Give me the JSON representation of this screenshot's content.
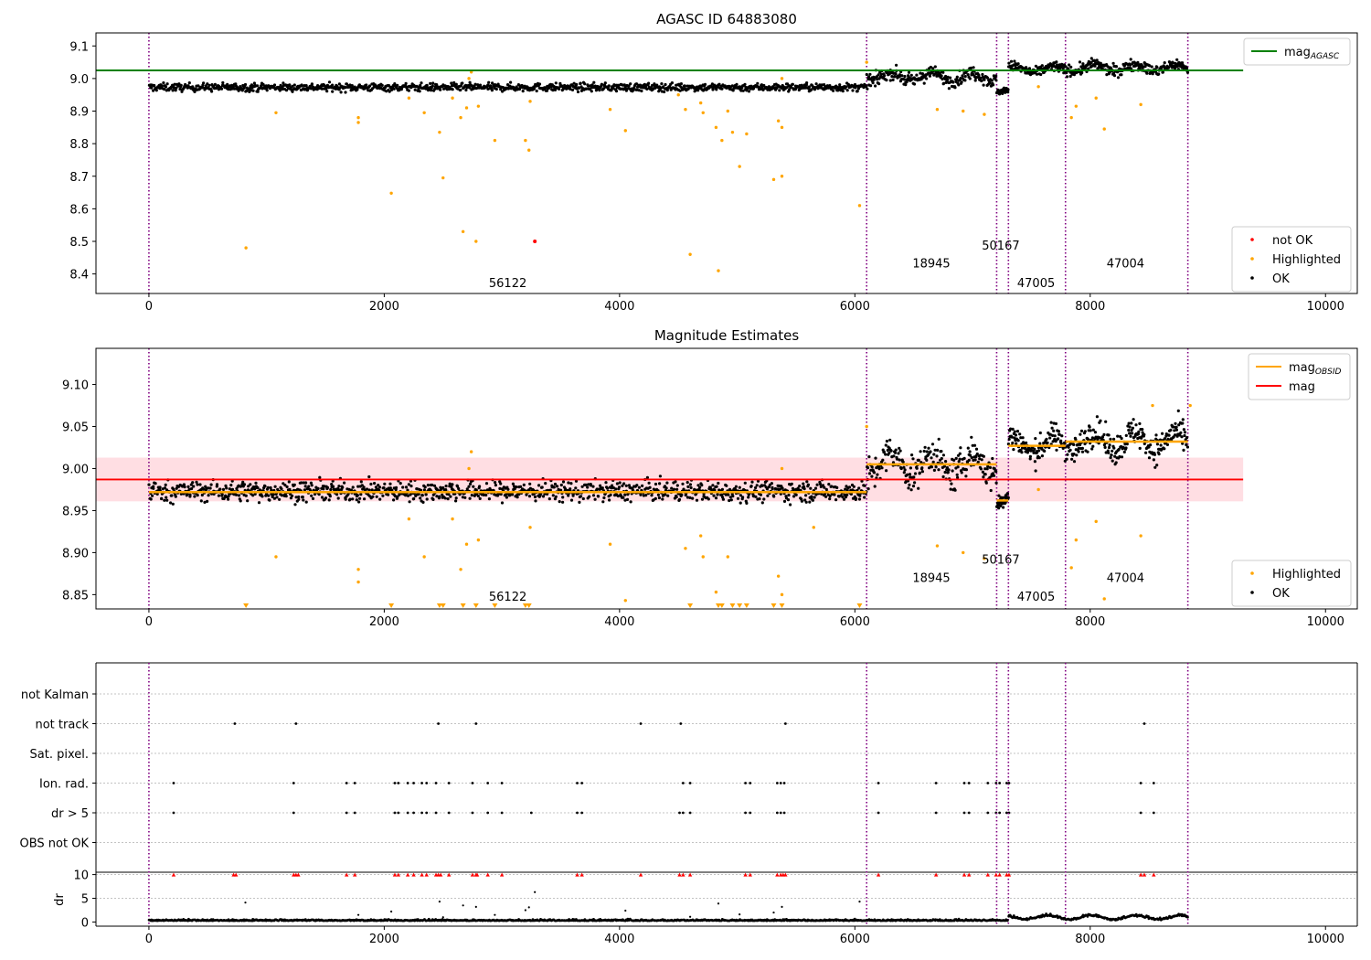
{
  "figure": {
    "title": "AGASC ID 64883080"
  },
  "chart_data": [
    {
      "id": "panel1",
      "type": "scatter",
      "title": "",
      "xlim": [
        -450,
        10270
      ],
      "ylim": [
        8.34,
        9.14
      ],
      "yticks": [
        8.4,
        8.5,
        8.6,
        8.7,
        8.8,
        8.9,
        9.0,
        9.1
      ],
      "ytick_labels": [
        "8.4",
        "8.5",
        "8.6",
        "8.7",
        "8.8",
        "8.9",
        "9.0",
        "9.1"
      ],
      "xticks": [
        0,
        2000,
        4000,
        6000,
        8000,
        10000
      ],
      "xtick_labels": [
        "0",
        "2000",
        "4000",
        "6000",
        "8000",
        "10000"
      ],
      "obsid_boundaries": [
        0,
        6100,
        7205,
        7305,
        7790,
        8830
      ],
      "obsid_labels": [
        {
          "text": "56122",
          "x": 3050,
          "y": 8.36
        },
        {
          "text": "18945",
          "x": 6650,
          "y": 8.42
        },
        {
          "text": "50167",
          "x": 7240,
          "y": 8.475
        },
        {
          "text": "47005",
          "x": 7540,
          "y": 8.36
        },
        {
          "text": "47004",
          "x": 8300,
          "y": 8.42
        }
      ],
      "segments": [
        {
          "x0": 0,
          "x1": 6100,
          "mean": 8.973,
          "sd": 0.0085,
          "n": 1150
        },
        {
          "x0": 6100,
          "x1": 7205,
          "mean": 9.005,
          "sd": 0.014,
          "n": 240
        },
        {
          "x0": 7205,
          "x1": 7305,
          "mean": 8.962,
          "sd": 0.006,
          "n": 40
        },
        {
          "x0": 7305,
          "x1": 7790,
          "mean": 9.028,
          "sd": 0.011,
          "n": 120
        },
        {
          "x0": 7790,
          "x1": 8830,
          "mean": 9.033,
          "sd": 0.012,
          "n": 250
        }
      ],
      "highlighted": [
        [
          825,
          8.48
        ],
        [
          1080,
          8.895
        ],
        [
          1780,
          8.865
        ],
        [
          1780,
          8.88
        ],
        [
          2060,
          8.648
        ],
        [
          2210,
          8.94
        ],
        [
          2340,
          8.895
        ],
        [
          2470,
          8.835
        ],
        [
          2500,
          8.695
        ],
        [
          2580,
          8.94
        ],
        [
          2650,
          8.88
        ],
        [
          2670,
          8.53
        ],
        [
          2700,
          8.91
        ],
        [
          2720,
          9.0
        ],
        [
          2740,
          9.02
        ],
        [
          2780,
          8.5
        ],
        [
          2800,
          8.915
        ],
        [
          2940,
          8.81
        ],
        [
          3200,
          8.81
        ],
        [
          3230,
          8.78
        ],
        [
          3240,
          8.93
        ],
        [
          3920,
          8.905
        ],
        [
          4050,
          8.84
        ],
        [
          4500,
          8.95
        ],
        [
          4560,
          8.905
        ],
        [
          4600,
          8.46
        ],
        [
          4690,
          8.925
        ],
        [
          4710,
          8.895
        ],
        [
          4820,
          8.85
        ],
        [
          4840,
          8.41
        ],
        [
          4870,
          8.81
        ],
        [
          4920,
          8.9
        ],
        [
          4960,
          8.835
        ],
        [
          5020,
          8.73
        ],
        [
          5080,
          8.83
        ],
        [
          5310,
          8.69
        ],
        [
          5350,
          8.87
        ],
        [
          5380,
          8.85
        ],
        [
          5380,
          8.7
        ],
        [
          5380,
          9.0
        ],
        [
          6040,
          8.61
        ],
        [
          6100,
          9.05
        ],
        [
          6700,
          8.905
        ],
        [
          6920,
          8.9
        ],
        [
          7100,
          8.89
        ],
        [
          7560,
          8.975
        ],
        [
          7840,
          8.88
        ],
        [
          7880,
          8.915
        ],
        [
          8050,
          8.94
        ],
        [
          8120,
          8.845
        ],
        [
          8430,
          8.92
        ]
      ],
      "not_ok": [
        [
          3280,
          8.5
        ]
      ],
      "hlines": [
        {
          "name": "magAGASC",
          "y": 9.025,
          "x0": -450,
          "x1": 9300,
          "color": "#008000"
        }
      ],
      "legends": [
        {
          "position": "upper right",
          "entries": [
            {
              "label": "mag",
              "subscript": "AGASC",
              "marker": "line",
              "color": "#008000"
            }
          ]
        },
        {
          "position": "lower right",
          "entries": [
            {
              "label": "not OK",
              "marker": "dot",
              "color": "#ff0000"
            },
            {
              "label": "Highlighted",
              "marker": "dot",
              "color": "#ffa500"
            },
            {
              "label": "OK",
              "marker": "dot",
              "color": "#000000"
            }
          ]
        }
      ]
    },
    {
      "id": "panel2",
      "type": "scatter",
      "title": "Magnitude Estimates",
      "xlim": [
        -450,
        10270
      ],
      "ylim": [
        8.833,
        9.143
      ],
      "yticks": [
        8.85,
        8.9,
        8.95,
        9.0,
        9.05,
        9.1
      ],
      "ytick_labels": [
        "8.85",
        "8.90",
        "8.95",
        "9.00",
        "9.05",
        "9.10"
      ],
      "xticks": [
        0,
        2000,
        4000,
        6000,
        8000,
        10000
      ],
      "xtick_labels": [
        "0",
        "2000",
        "4000",
        "6000",
        "8000",
        "10000"
      ],
      "obsid_boundaries": [
        0,
        6100,
        7205,
        7305,
        7790,
        8830
      ],
      "obsid_labels": [
        {
          "text": "56122",
          "x": 3050,
          "y": 8.843
        },
        {
          "text": "18945",
          "x": 6650,
          "y": 8.865
        },
        {
          "text": "50167",
          "x": 7240,
          "y": 8.887
        },
        {
          "text": "47005",
          "x": 7540,
          "y": 8.843
        },
        {
          "text": "47004",
          "x": 8300,
          "y": 8.865
        }
      ],
      "segments": [
        {
          "x0": 0,
          "x1": 6100,
          "mean": 8.973,
          "sd": 0.0085,
          "n": 1150
        },
        {
          "x0": 6100,
          "x1": 7205,
          "mean": 9.005,
          "sd": 0.014,
          "n": 240
        },
        {
          "x0": 7205,
          "x1": 7305,
          "mean": 8.962,
          "sd": 0.006,
          "n": 40
        },
        {
          "x0": 7305,
          "x1": 7790,
          "mean": 9.028,
          "sd": 0.011,
          "n": 120
        },
        {
          "x0": 7790,
          "x1": 8830,
          "mean": 9.033,
          "sd": 0.012,
          "n": 250
        }
      ],
      "highlighted": [
        [
          1080,
          8.895
        ],
        [
          1780,
          8.865
        ],
        [
          1780,
          8.88
        ],
        [
          2210,
          8.94
        ],
        [
          2340,
          8.895
        ],
        [
          2580,
          8.94
        ],
        [
          2650,
          8.88
        ],
        [
          2700,
          8.91
        ],
        [
          2720,
          9.0
        ],
        [
          2740,
          9.02
        ],
        [
          2800,
          8.915
        ],
        [
          3240,
          8.93
        ],
        [
          3920,
          8.91
        ],
        [
          4050,
          8.843
        ],
        [
          4560,
          8.905
        ],
        [
          4690,
          8.92
        ],
        [
          4710,
          8.895
        ],
        [
          4820,
          8.853
        ],
        [
          4920,
          8.895
        ],
        [
          5350,
          8.872
        ],
        [
          5380,
          8.85
        ],
        [
          5380,
          9.0
        ],
        [
          5650,
          8.93
        ],
        [
          6100,
          9.05
        ],
        [
          6700,
          8.908
        ],
        [
          6920,
          8.9
        ],
        [
          7100,
          8.893
        ],
        [
          7560,
          8.975
        ],
        [
          7840,
          8.882
        ],
        [
          7880,
          8.915
        ],
        [
          8050,
          8.937
        ],
        [
          8120,
          8.845
        ],
        [
          8430,
          8.92
        ],
        [
          8530,
          9.075
        ],
        [
          8850,
          9.075
        ]
      ],
      "below_axis": [
        825,
        2060,
        2470,
        2500,
        2670,
        2780,
        2940,
        3200,
        3230,
        4600,
        4840,
        4870,
        4960,
        5020,
        5080,
        5310,
        5380,
        6040
      ],
      "obsid_means": [
        {
          "x0": 0,
          "x1": 6100,
          "y": 8.972
        },
        {
          "x0": 6100,
          "x1": 7205,
          "y": 9.005
        },
        {
          "x0": 7205,
          "x1": 7305,
          "y": 8.962
        },
        {
          "x0": 7305,
          "x1": 7790,
          "y": 9.027
        },
        {
          "x0": 7790,
          "x1": 8830,
          "y": 9.032
        }
      ],
      "mag": {
        "y": 8.987,
        "band": [
          8.961,
          9.013
        ],
        "x0": -450,
        "x1": 9300
      },
      "legends": [
        {
          "position": "upper right",
          "entries": [
            {
              "label": "mag",
              "subscript": "OBSID",
              "marker": "line",
              "color": "#ffa500"
            },
            {
              "label": "mag",
              "marker": "line",
              "color": "#ff0000"
            }
          ]
        },
        {
          "position": "lower right",
          "entries": [
            {
              "label": "Highlighted",
              "marker": "dot",
              "color": "#ffa500"
            },
            {
              "label": "OK",
              "marker": "dot",
              "color": "#000000"
            }
          ]
        }
      ]
    },
    {
      "id": "panel3",
      "type": "scatter",
      "title": "",
      "xlim": [
        -450,
        10270
      ],
      "flag_rows": [
        "not Kalman",
        "not track",
        "Sat. pixel.",
        "Ion. rad.",
        "dr > 5",
        "OBS not OK"
      ],
      "flag_points": {
        "not track": [
          730,
          1250,
          2460,
          2780,
          4180,
          4520,
          5410,
          8460
        ],
        "Ion. rad.": [
          210,
          1230,
          1680,
          1750,
          2090,
          2120,
          2200,
          2250,
          2320,
          2360,
          2440,
          2550,
          2750,
          2880,
          3000,
          3640,
          3680,
          4540,
          4600,
          5070,
          5110,
          5340,
          5370,
          5400,
          6200,
          6690,
          6930,
          6970,
          7130,
          7200,
          7230,
          7290,
          7310,
          8430,
          8540
        ],
        "dr > 5": [
          210,
          1230,
          1680,
          1750,
          2090,
          2120,
          2200,
          2250,
          2320,
          2360,
          2440,
          2550,
          2750,
          2880,
          3000,
          3250,
          3640,
          3680,
          4510,
          4540,
          4600,
          5070,
          5110,
          5340,
          5370,
          5400,
          6200,
          6690,
          6930,
          6970,
          7130,
          7200,
          7230,
          7290,
          7310,
          8430,
          8540
        ]
      },
      "dr": {
        "ylim": [
          -0.3,
          10.5
        ],
        "yticks": [
          0,
          5,
          10
        ],
        "ytick_labels": [
          "0",
          "5",
          "10"
        ],
        "ylabel": "dr",
        "clip": 10,
        "outliers": [
          [
            820,
            4.1
          ],
          [
            1780,
            1.5
          ],
          [
            2060,
            2.2
          ],
          [
            2470,
            4.3
          ],
          [
            2500,
            1.0
          ],
          [
            2670,
            3.5
          ],
          [
            2780,
            3.2
          ],
          [
            2940,
            1.5
          ],
          [
            3200,
            2.5
          ],
          [
            3230,
            3.1
          ],
          [
            3280,
            6.3
          ],
          [
            4050,
            2.4
          ],
          [
            4600,
            1.1
          ],
          [
            4840,
            3.9
          ],
          [
            5020,
            1.6
          ],
          [
            5310,
            2.0
          ],
          [
            5380,
            3.2
          ],
          [
            6040,
            4.3
          ]
        ],
        "clipped": [
          210,
          720,
          740,
          1230,
          1250,
          1270,
          1680,
          1750,
          2090,
          2120,
          2200,
          2250,
          2320,
          2360,
          2440,
          2460,
          2480,
          2550,
          2750,
          2780,
          2790,
          2880,
          3000,
          3640,
          3680,
          4180,
          4510,
          4540,
          4600,
          5070,
          5110,
          5340,
          5370,
          5390,
          5410,
          6200,
          6690,
          6930,
          6970,
          7130,
          7200,
          7230,
          7290,
          7310,
          8430,
          8460,
          8540
        ]
      },
      "xticks": [
        0,
        2000,
        4000,
        6000,
        8000,
        10000
      ],
      "xtick_labels": [
        "0",
        "2000",
        "4000",
        "6000",
        "8000",
        "10000"
      ],
      "obsid_boundaries": [
        0,
        6100,
        7205,
        7305,
        7790,
        8830
      ]
    }
  ],
  "colors": {
    "ok": "#000000",
    "highlighted": "#ffa500",
    "not_ok": "#ff0000",
    "boundary": "#800080",
    "grid": "#b0b0b0"
  }
}
